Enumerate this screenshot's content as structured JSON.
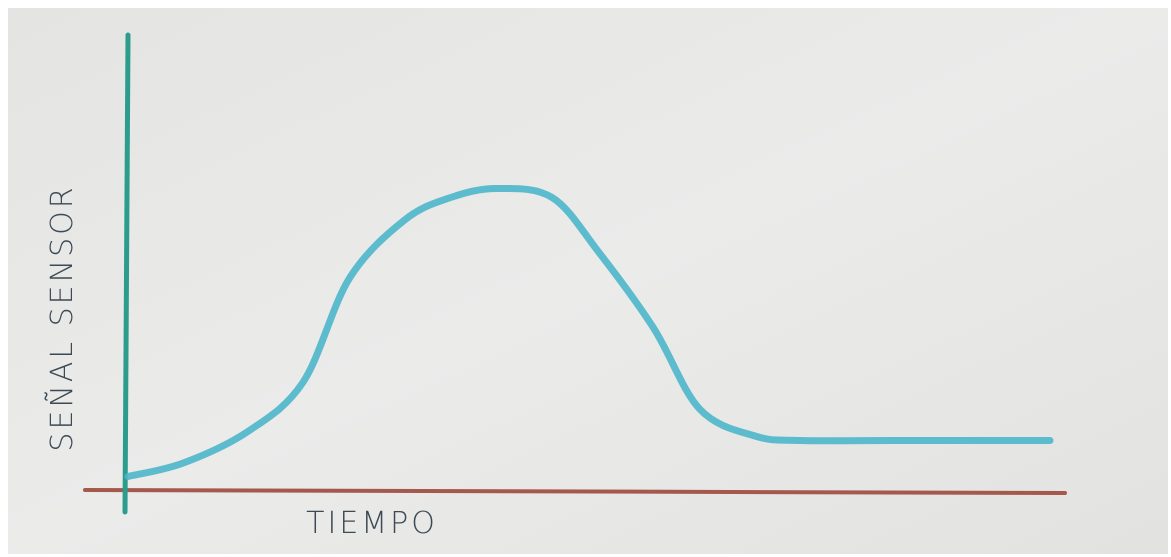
{
  "chart_data": {
    "type": "line",
    "y_label": "SEÑAL SENSOR",
    "x_label": "TIEMPO",
    "x": [
      0,
      6,
      13,
      19,
      24,
      30,
      35,
      40,
      46,
      51,
      57,
      62,
      68,
      73,
      84,
      100
    ],
    "series": [
      {
        "color": "#4db6c9",
        "values": [
          3,
          6,
          13,
          24,
          47,
          60,
          65,
          67,
          65,
          53,
          36,
          18,
          12,
          11,
          11,
          11
        ]
      }
    ],
    "xlim": [
      0,
      100
    ],
    "ylim": [
      0,
      100
    ],
    "y_axis_color": "#2c9c8c",
    "x_axis_color": "#a5584c"
  }
}
